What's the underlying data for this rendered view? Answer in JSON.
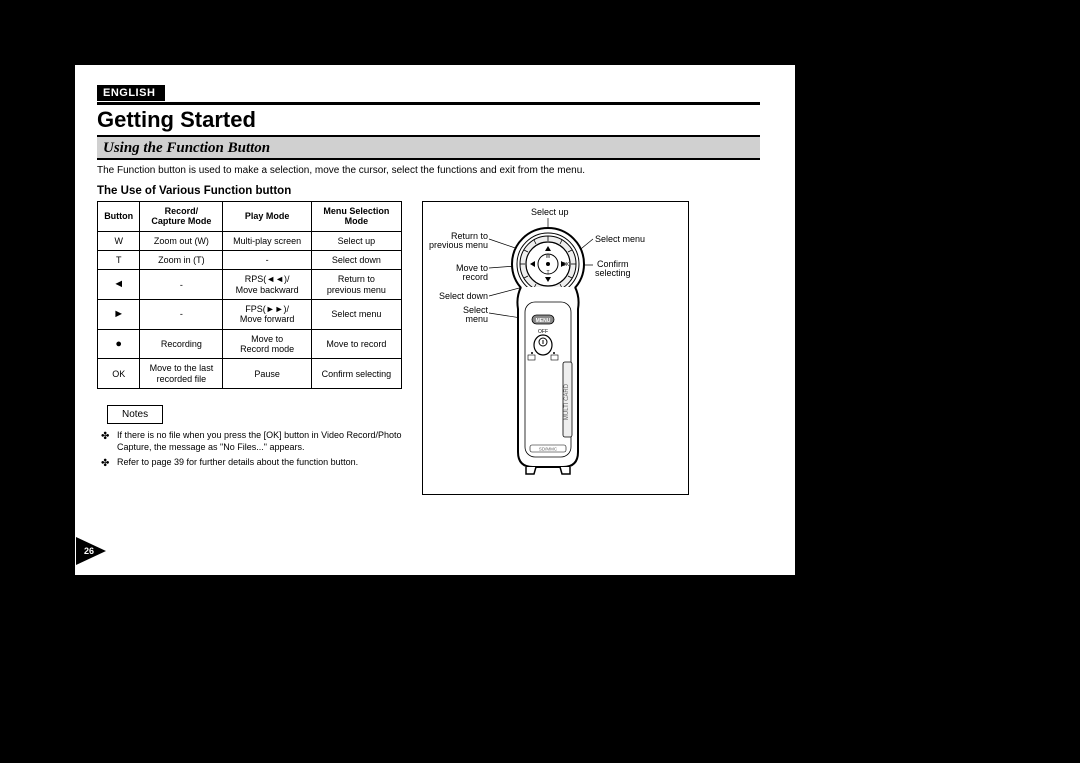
{
  "language_tag": "ENGLISH",
  "chapter_title": "Getting Started",
  "section_title": "Using the Function Button",
  "intro_text": "The Function button is used to make a selection, move the cursor, select the functions and exit from the menu.",
  "table_heading": "The Use of Various Function button",
  "table": {
    "headers": [
      "Button",
      "Record/\nCapture Mode",
      "Play Mode",
      "Menu Selection\nMode"
    ],
    "rows": [
      [
        "W",
        "Zoom out (W)",
        "Multi-play screen",
        "Select up"
      ],
      [
        "T",
        "Zoom in (T)",
        "-",
        "Select down"
      ],
      [
        "◄",
        "-",
        "RPS(◄◄)/\nMove backward",
        "Return to\nprevious menu"
      ],
      [
        "►",
        "-",
        "FPS(►►)/\nMove forward",
        "Select menu"
      ],
      [
        "●",
        "Recording",
        "Move to\nRecord mode",
        "Move to record"
      ],
      [
        "OK",
        "Move to the last\nrecorded file",
        "Pause",
        "Confirm selecting"
      ]
    ]
  },
  "notes_label": "Notes",
  "notes": [
    "If there is no file when you press the [OK] button in Video Record/Photo Capture, the message as \"No Files...\" appears.",
    "Refer to page 39 for further details about the function button."
  ],
  "page_number": "26",
  "diagram_labels": {
    "select_up": "Select up",
    "return_prev": "Return to\nprevious menu",
    "move_record": "Move to record",
    "select_down": "Select down",
    "select_menu_btn": "Select\nmenu",
    "select_menu": "Select menu",
    "confirm": "Confirm\nselecting",
    "menu_button": "MENU",
    "w_letter": "W",
    "t_letter": "T",
    "ok_letter": "OK",
    "off_text": "OFF",
    "side_label": "MULTI CARD",
    "bottom_label": "SD/MMC"
  },
  "colors": {
    "page_bg": "#ffffff",
    "canvas_bg": "#000000",
    "section_band": "#d0d0d0",
    "text": "#000000",
    "grid_fill": "#bfbfbf"
  }
}
